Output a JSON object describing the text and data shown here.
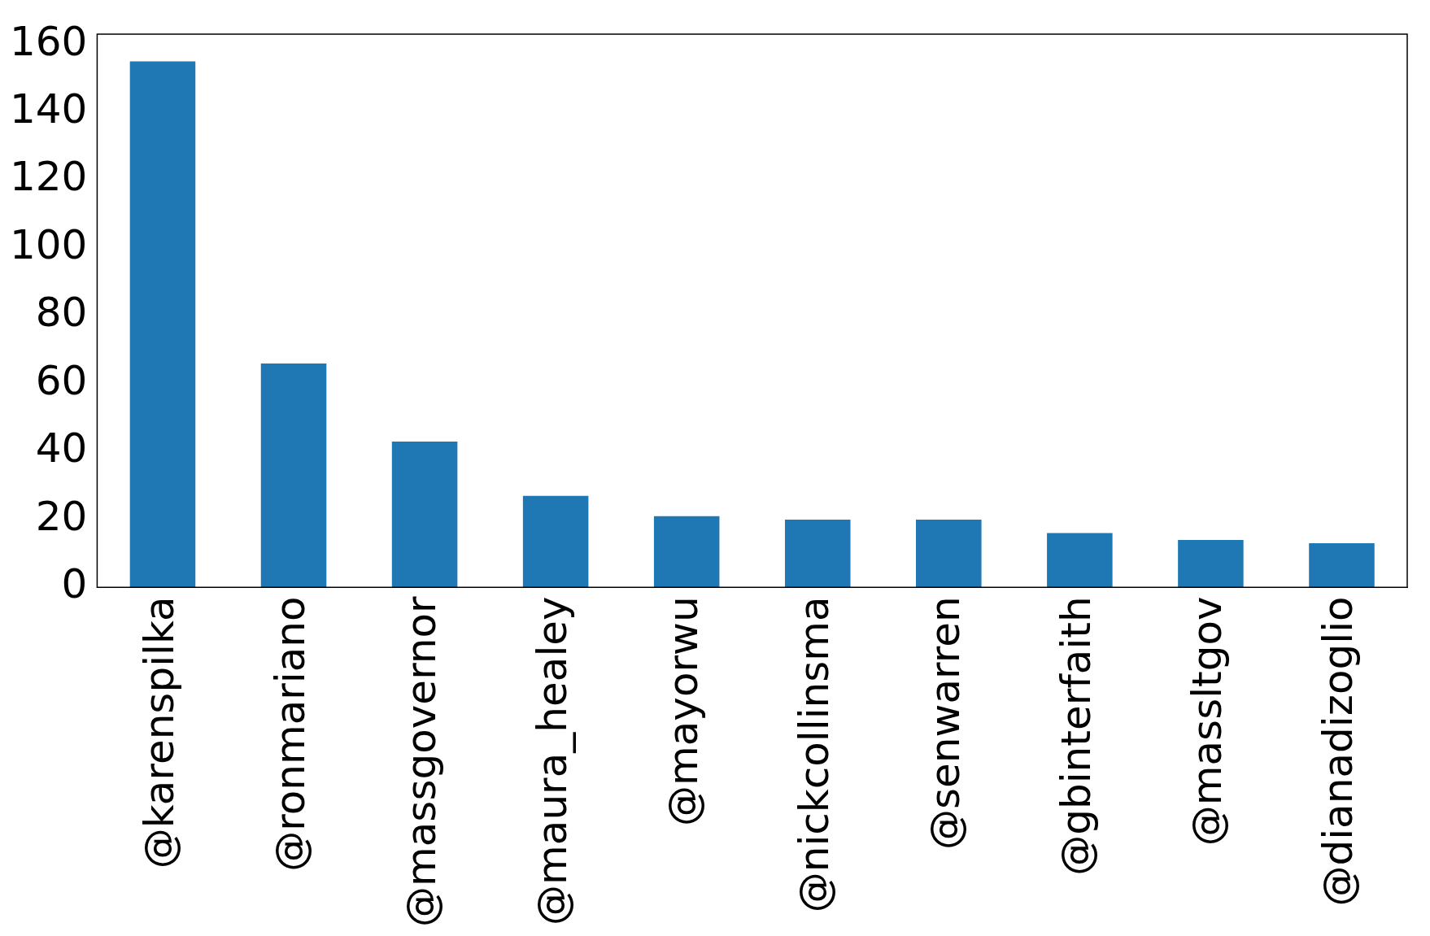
{
  "chart_data": {
    "type": "bar",
    "categories": [
      "@karenspilka",
      "@ronmariano",
      "@massgovernor",
      "@maura_healey",
      "@mayorwu",
      "@nickcollinsma",
      "@senwarren",
      "@gbinterfaith",
      "@massltgov",
      "@dianadizoglio"
    ],
    "values": [
      155,
      66,
      43,
      27,
      21,
      20,
      20,
      16,
      14,
      13
    ],
    "color": "#1f77b4",
    "ylim": [
      0,
      163
    ],
    "yticks": [
      0,
      20,
      40,
      60,
      80,
      100,
      120,
      140,
      160
    ],
    "grid": false,
    "legend": false
  }
}
